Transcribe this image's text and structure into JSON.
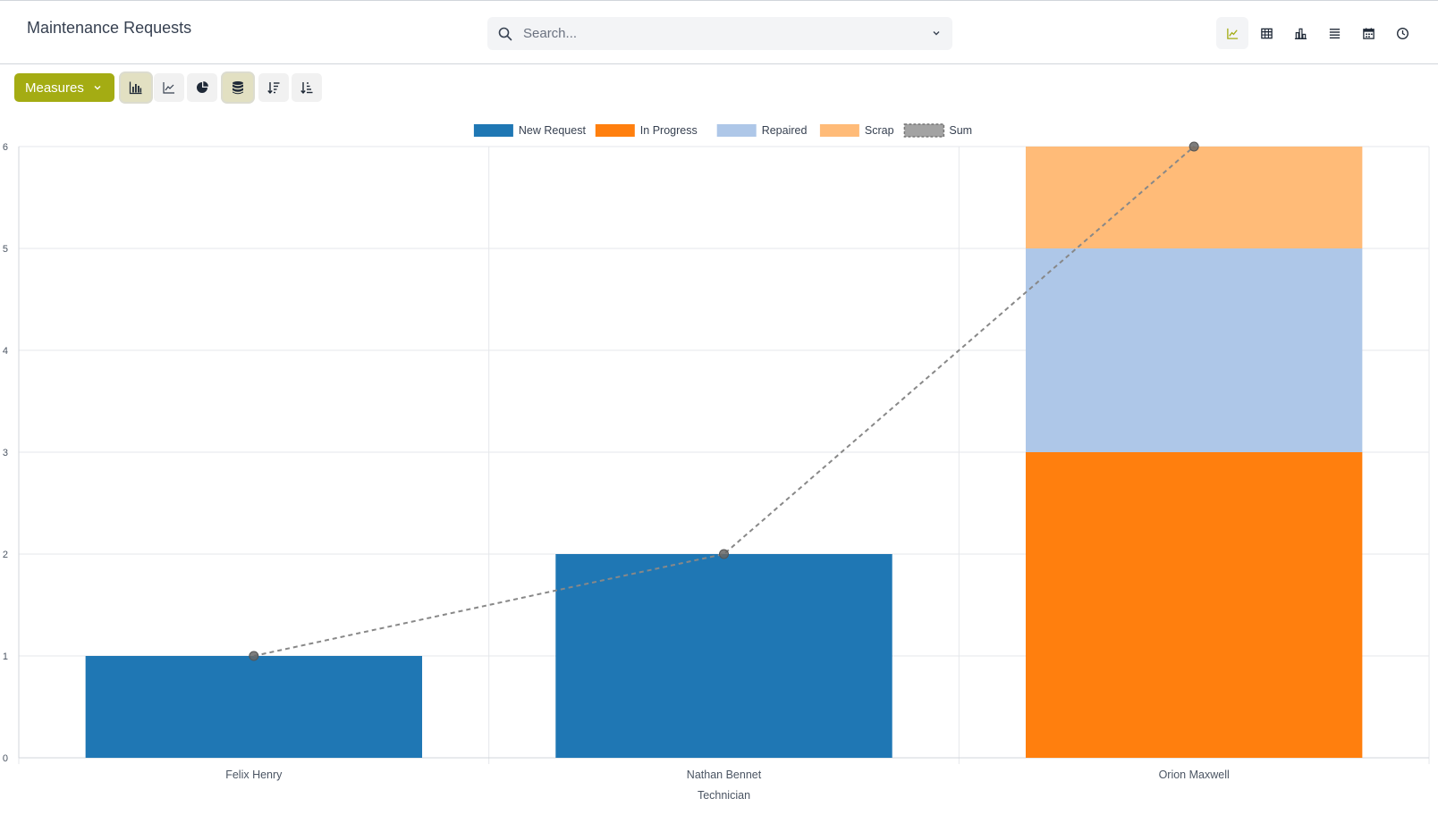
{
  "header": {
    "title": "Maintenance Requests",
    "search_placeholder": "Search..."
  },
  "view_switcher": [
    {
      "name": "graph-view-icon",
      "active": true
    },
    {
      "name": "pivot-view-icon",
      "active": false
    },
    {
      "name": "cohort-view-icon",
      "active": false
    },
    {
      "name": "list-view-icon",
      "active": false
    },
    {
      "name": "calendar-view-icon",
      "active": false
    },
    {
      "name": "activity-view-icon",
      "active": false
    }
  ],
  "toolbar": {
    "measures_label": "Measures",
    "buttons": [
      {
        "name": "bar-chart-icon",
        "active": true
      },
      {
        "name": "line-chart-icon",
        "active": false
      },
      {
        "name": "pie-chart-icon",
        "active": false
      },
      {
        "name": "stacked-icon",
        "active": true
      },
      {
        "name": "sort-descending-icon",
        "active": false
      },
      {
        "name": "sort-ascending-icon",
        "active": false
      }
    ]
  },
  "colors": {
    "accent": "#a4ac13",
    "new_request": "#1f77b4",
    "in_progress": "#ff7f0e",
    "repaired": "#aec7e8",
    "scrap": "#ffbb78",
    "sum": "#888888"
  },
  "chart_data": {
    "type": "bar",
    "stacked": true,
    "categories": [
      "Felix Henry",
      "Nathan Bennet",
      "Orion Maxwell"
    ],
    "xlabel": "Technician",
    "ylabel": "",
    "ylim": [
      0,
      6
    ],
    "yticks": [
      0,
      1,
      2,
      3,
      4,
      5,
      6
    ],
    "grid": true,
    "legend_position": "top-center",
    "series": [
      {
        "name": "New Request",
        "values": [
          1,
          2,
          0
        ],
        "color": "#1f77b4"
      },
      {
        "name": "In Progress",
        "values": [
          0,
          0,
          3
        ],
        "color": "#ff7f0e"
      },
      {
        "name": "Repaired",
        "values": [
          0,
          0,
          2
        ],
        "color": "#aec7e8"
      },
      {
        "name": "Scrap",
        "values": [
          0,
          0,
          1
        ],
        "color": "#ffbb78"
      }
    ],
    "sum_line": {
      "name": "Sum",
      "values": [
        1,
        2,
        6
      ],
      "style": "dashed",
      "color": "#888888"
    }
  }
}
